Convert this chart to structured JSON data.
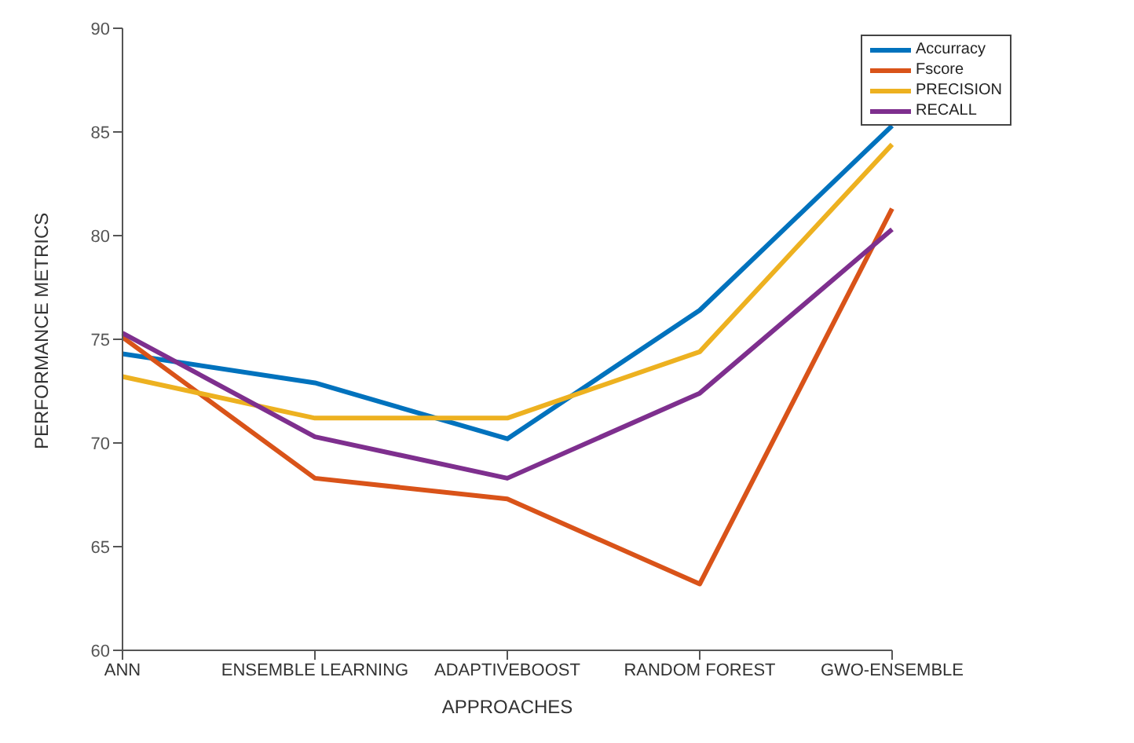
{
  "chart_data": {
    "type": "line",
    "xlabel": "APPROACHES",
    "ylabel": "PERFORMANCE METRICS",
    "categories": [
      "ANN",
      "ENSEMBLE LEARNING",
      "ADAPTIVEBOOST",
      "RANDOM FOREST",
      "GWO-ENSEMBLE"
    ],
    "series": [
      {
        "name": "Accurracy",
        "color": "#0072bd",
        "values": [
          74.3,
          72.9,
          70.2,
          76.4,
          85.3
        ]
      },
      {
        "name": "Fscore",
        "color": "#d95319",
        "values": [
          75.1,
          68.3,
          67.3,
          63.2,
          81.3
        ]
      },
      {
        "name": "PRECISION",
        "color": "#edb120",
        "values": [
          73.2,
          71.2,
          71.2,
          74.4,
          84.4
        ]
      },
      {
        "name": "RECALL",
        "color": "#7e2f8e",
        "values": [
          75.3,
          70.3,
          68.3,
          72.4,
          80.3
        ]
      }
    ],
    "ylim": [
      60,
      90
    ],
    "yticks": [
      60,
      65,
      70,
      75,
      80,
      85,
      90
    ],
    "grid": false,
    "legend": "top right",
    "marker": "none",
    "line_style": "solid"
  }
}
